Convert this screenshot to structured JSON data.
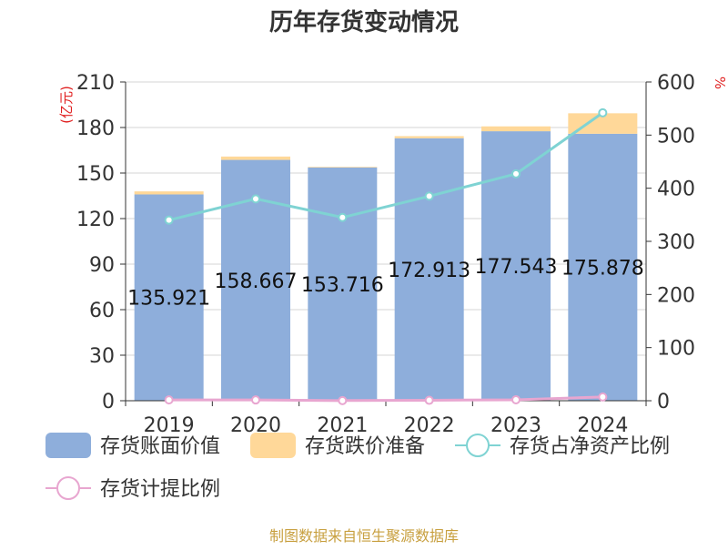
{
  "title": "历年存货变动情况",
  "footer": "制图数据来自恒生聚源数据库",
  "chart_data": {
    "type": "bar",
    "categories": [
      "2019",
      "2020",
      "2021",
      "2022",
      "2023",
      "2024"
    ],
    "left_axis": {
      "unit": "(亿元)",
      "ylim": [
        0,
        210
      ],
      "ticks": [
        "0",
        "30",
        "60",
        "90",
        "120",
        "150",
        "180",
        "210"
      ]
    },
    "right_axis": {
      "unit": "%",
      "ylim": [
        0,
        600
      ],
      "ticks": [
        "0",
        "100",
        "200",
        "300",
        "400",
        "500",
        "600"
      ]
    },
    "series": [
      {
        "name": "存货账面价值",
        "kind": "bar",
        "axis": "left",
        "color": "#8eaedb",
        "values": [
          135.921,
          158.667,
          153.716,
          172.913,
          177.543,
          175.878
        ],
        "labels": [
          "135.921",
          "158.667",
          "153.716",
          "172.913",
          "177.543",
          "175.878"
        ]
      },
      {
        "name": "存货跌价准备",
        "kind": "bar-stacked",
        "axis": "left",
        "color": "#ffd899",
        "values": [
          2.0,
          2.2,
          0.4,
          1.4,
          3.2,
          13.5
        ]
      },
      {
        "name": "存货占净资产比例",
        "kind": "line",
        "axis": "right",
        "color": "#7fd3d3",
        "values": [
          340,
          380,
          345,
          385,
          427,
          542
        ]
      },
      {
        "name": "存货计提比例",
        "kind": "line",
        "axis": "right",
        "color": "#e8a6d0",
        "values": [
          1.5,
          1.4,
          0.3,
          0.8,
          1.8,
          7.1
        ]
      }
    ],
    "grid": true,
    "legend_position": "bottom"
  }
}
